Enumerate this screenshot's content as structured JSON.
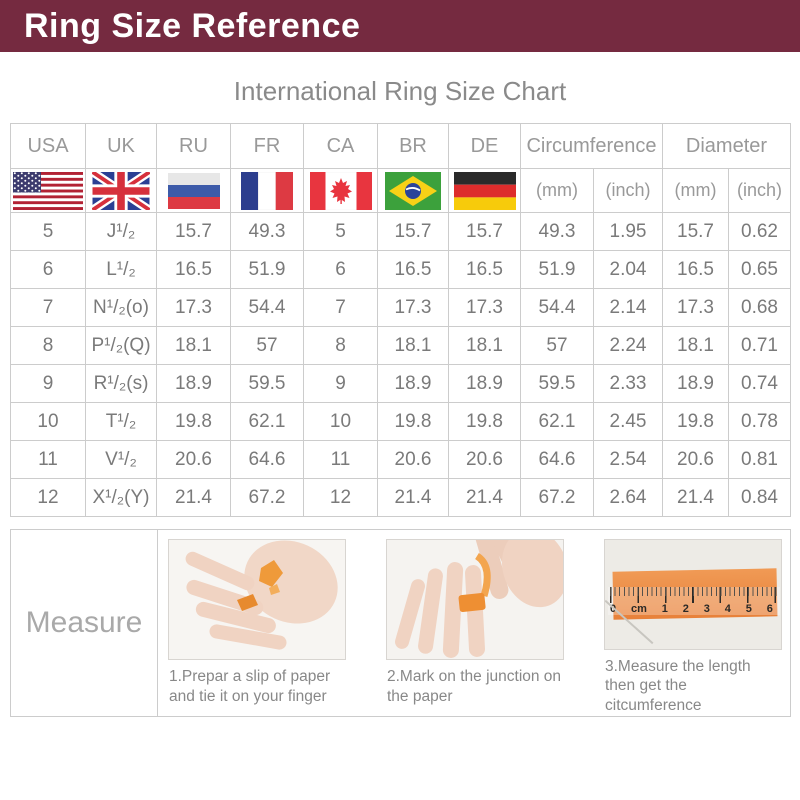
{
  "banner": {
    "title": "Ring Size Reference",
    "bg_color": "#752a40",
    "text_color": "#ffffff"
  },
  "subtitle": "International Ring Size Chart",
  "table": {
    "country_columns": [
      {
        "label": "USA",
        "flag_icon": "usa-flag-icon"
      },
      {
        "label": "UK",
        "flag_icon": "uk-flag-icon"
      },
      {
        "label": "RU",
        "flag_icon": "russia-flag-icon"
      },
      {
        "label": "FR",
        "flag_icon": "france-flag-icon"
      },
      {
        "label": "CA",
        "flag_icon": "canada-flag-icon"
      },
      {
        "label": "BR",
        "flag_icon": "brazil-flag-icon"
      },
      {
        "label": "DE",
        "flag_icon": "germany-flag-icon"
      }
    ],
    "group_columns": [
      {
        "label": "Circumference",
        "units": [
          "(mm)",
          "(inch)"
        ]
      },
      {
        "label": "Diameter",
        "units": [
          "(mm)",
          "(inch)"
        ]
      }
    ]
  },
  "chart_data": {
    "type": "table",
    "title": "International Ring Size Chart",
    "columns": [
      "USA",
      "UK",
      "RU",
      "FR",
      "CA",
      "BR",
      "DE",
      "Circumference (mm)",
      "Circumference (inch)",
      "Diameter (mm)",
      "Diameter (inch)"
    ],
    "rows": [
      [
        "5",
        "J¹/₂",
        "15.7",
        "49.3",
        "5",
        "15.7",
        "15.7",
        "49.3",
        "1.95",
        "15.7",
        "0.62"
      ],
      [
        "6",
        "L¹/₂",
        "16.5",
        "51.9",
        "6",
        "16.5",
        "16.5",
        "51.9",
        "2.04",
        "16.5",
        "0.65"
      ],
      [
        "7",
        "N¹/₂(o)",
        "17.3",
        "54.4",
        "7",
        "17.3",
        "17.3",
        "54.4",
        "2.14",
        "17.3",
        "0.68"
      ],
      [
        "8",
        "P¹/₂(Q)",
        "18.1",
        "57",
        "8",
        "18.1",
        "18.1",
        "57",
        "2.24",
        "18.1",
        "0.71"
      ],
      [
        "9",
        "R¹/₂(s)",
        "18.9",
        "59.5",
        "9",
        "18.9",
        "18.9",
        "59.5",
        "2.33",
        "18.9",
        "0.74"
      ],
      [
        "10",
        "T¹/₂",
        "19.8",
        "62.1",
        "10",
        "19.8",
        "19.8",
        "62.1",
        "2.45",
        "19.8",
        "0.78"
      ],
      [
        "11",
        "V¹/₂",
        "20.6",
        "64.6",
        "11",
        "20.6",
        "20.6",
        "64.6",
        "2.54",
        "20.6",
        "0.81"
      ],
      [
        "12",
        "X¹/₂(Y)",
        "21.4",
        "67.2",
        "12",
        "21.4",
        "21.4",
        "67.2",
        "2.64",
        "21.4",
        "0.84"
      ]
    ]
  },
  "measure": {
    "label": "Measure",
    "steps": [
      {
        "caption": "1.Prepar a slip of paper and tie it on your finger"
      },
      {
        "caption": "2.Mark on the junction on the paper"
      },
      {
        "caption": "3.Measure the length then get the citcumference"
      }
    ],
    "ruler_labels": [
      "0",
      "cm",
      "1",
      "2",
      "3",
      "4",
      "5",
      "6"
    ]
  }
}
